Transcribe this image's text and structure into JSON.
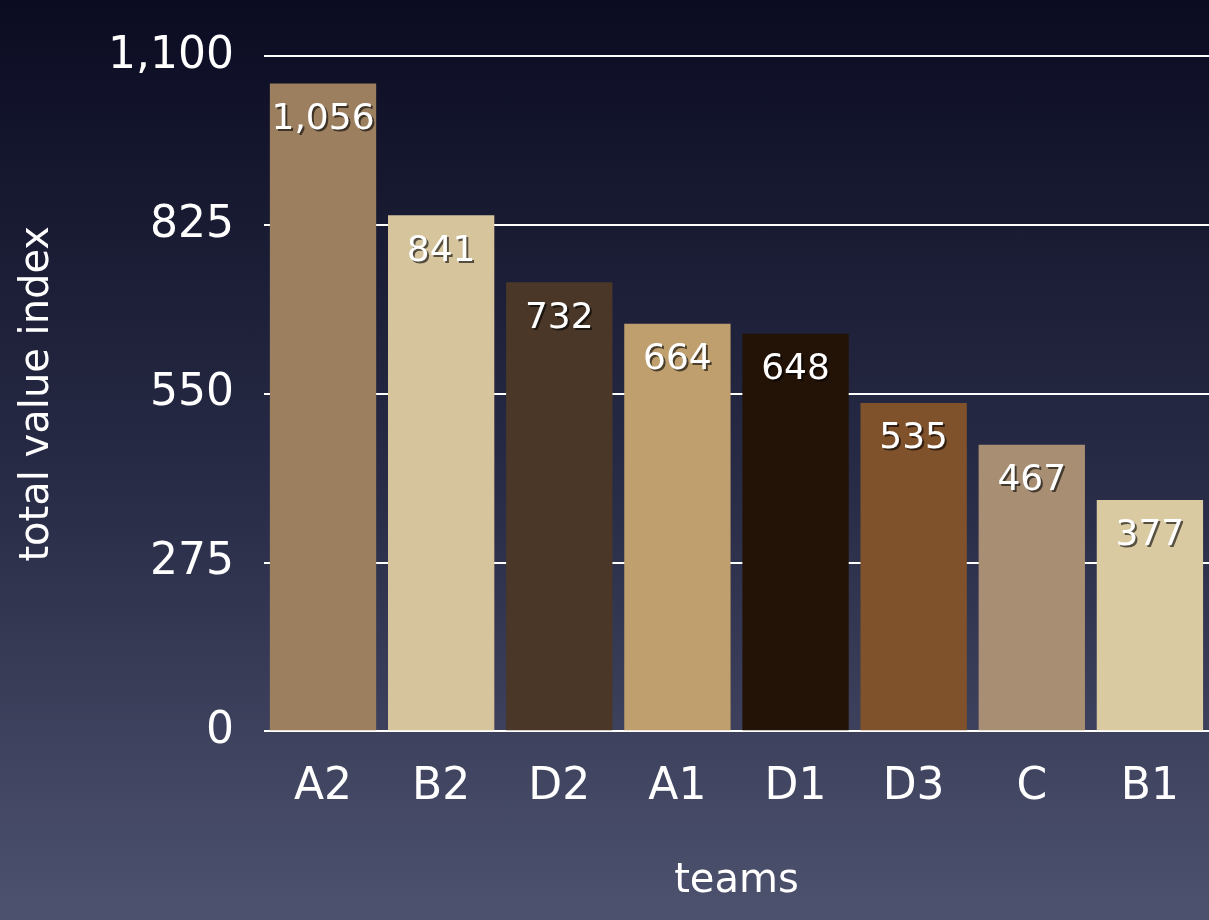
{
  "chart_data": {
    "type": "bar",
    "xlabel": "teams",
    "ylabel": "total value index",
    "categories": [
      "A2",
      "B2",
      "D2",
      "A1",
      "D1",
      "D3",
      "C",
      "B1"
    ],
    "values": [
      1056,
      841,
      732,
      664,
      648,
      535,
      467,
      377
    ],
    "colors": [
      "#9c7f5f",
      "#d5c49c",
      "#4a3728",
      "#bf9f6e",
      "#231206",
      "#80522b",
      "#a88f73",
      "#d9caa2"
    ],
    "value_labels": [
      "1,056",
      "841",
      "732",
      "664",
      "648",
      "535",
      "467",
      "377"
    ],
    "ylim": [
      0,
      1100
    ],
    "yticks": [
      0,
      275,
      550,
      825,
      {
        "value": 1100,
        "label": "1,100"
      }
    ],
    "grid": "y"
  }
}
